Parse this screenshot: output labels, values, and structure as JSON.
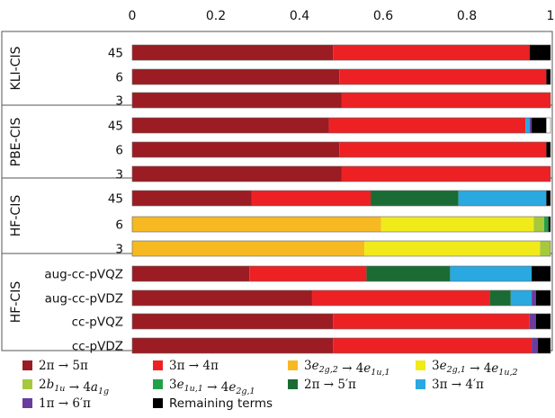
{
  "chart_data": {
    "type": "bar",
    "orientation": "horizontal",
    "stacked": true,
    "xlim": [
      0,
      1
    ],
    "xticks": [
      0,
      0.2,
      0.4,
      0.6,
      0.8,
      1
    ],
    "xtick_labels": [
      "0",
      "0.2",
      "0.4",
      "0.6",
      "0.8",
      "1"
    ],
    "title": "",
    "xlabel": "",
    "ylabel": "",
    "legend_position": "bottom",
    "groups": [
      {
        "label": "KLI-CIS",
        "rows": [
          "45",
          "6",
          "3"
        ]
      },
      {
        "label": "PBE-CIS",
        "rows": [
          "45",
          "6",
          "3"
        ]
      },
      {
        "label": "HF-CIS",
        "rows": [
          "45",
          "6",
          "3"
        ]
      },
      {
        "label": "HF-CIS",
        "rows": [
          "aug-cc-pVQZ",
          "aug-cc-pVDZ",
          "cc-pVQZ",
          "cc-pVDZ"
        ]
      }
    ],
    "series": [
      {
        "name": "2π → 5π",
        "color": "#9b1c22"
      },
      {
        "name": "3π → 4π",
        "color": "#ed2124"
      },
      {
        "name": "3e2g,2 → 4e1u,1",
        "color": "#f6b921"
      },
      {
        "name": "3e2g,1 → 4e1u,2",
        "color": "#f0ea1a"
      },
      {
        "name": "2b1u → 4a1g",
        "color": "#a6c83c"
      },
      {
        "name": "3e1u,1 → 4e2g,1",
        "color": "#22a04a"
      },
      {
        "name": "2π → 5′π",
        "color": "#1b6b34"
      },
      {
        "name": "3π → 4′π",
        "color": "#2aa8e0"
      },
      {
        "name": "1π → 6′π",
        "color": "#6a3c9c"
      },
      {
        "name": "Remaining terms",
        "color": "#000000"
      }
    ],
    "bars": [
      {
        "group": 0,
        "label": "45",
        "segments": [
          0.48,
          0.47,
          0,
          0,
          0,
          0,
          0,
          0,
          0,
          0.05
        ]
      },
      {
        "group": 0,
        "label": "6",
        "segments": [
          0.495,
          0.495,
          0,
          0,
          0,
          0,
          0,
          0,
          0,
          0.01
        ]
      },
      {
        "group": 0,
        "label": "3",
        "segments": [
          0.5,
          0.5,
          0,
          0,
          0,
          0,
          0,
          0,
          0,
          0
        ]
      },
      {
        "group": 1,
        "label": "45",
        "segments": [
          0.47,
          0.47,
          0,
          0,
          0,
          0,
          0,
          0.01,
          0.005,
          0.035
        ]
      },
      {
        "group": 1,
        "label": "6",
        "segments": [
          0.495,
          0.495,
          0,
          0,
          0,
          0,
          0,
          0,
          0,
          0.01
        ]
      },
      {
        "group": 1,
        "label": "3",
        "segments": [
          0.5,
          0.5,
          0,
          0,
          0,
          0,
          0,
          0,
          0,
          0
        ]
      },
      {
        "group": 2,
        "label": "45",
        "segments": [
          0.285,
          0.285,
          0,
          0,
          0,
          0,
          0.21,
          0.21,
          0,
          0.01
        ]
      },
      {
        "group": 2,
        "label": "6",
        "segments": [
          0,
          0,
          0.595,
          0.365,
          0.025,
          0.01,
          0,
          0,
          0,
          0.005
        ]
      },
      {
        "group": 2,
        "label": "3",
        "segments": [
          0,
          0,
          0.555,
          0.42,
          0.025,
          0,
          0,
          0,
          0,
          0
        ]
      },
      {
        "group": 3,
        "label": "aug-cc-pVQZ",
        "segments": [
          0.28,
          0.28,
          0,
          0,
          0,
          0,
          0.2,
          0.195,
          0,
          0.045
        ]
      },
      {
        "group": 3,
        "label": "aug-cc-pVDZ",
        "segments": [
          0.43,
          0.425,
          0,
          0,
          0,
          0,
          0.05,
          0.05,
          0.01,
          0.035
        ]
      },
      {
        "group": 3,
        "label": "cc-pVQZ",
        "segments": [
          0.48,
          0.47,
          0,
          0,
          0,
          0,
          0,
          0,
          0.015,
          0.035
        ]
      },
      {
        "group": 3,
        "label": "cc-pVDZ",
        "segments": [
          0.48,
          0.475,
          0,
          0,
          0,
          0,
          0,
          0,
          0.015,
          0.03
        ]
      }
    ]
  }
}
